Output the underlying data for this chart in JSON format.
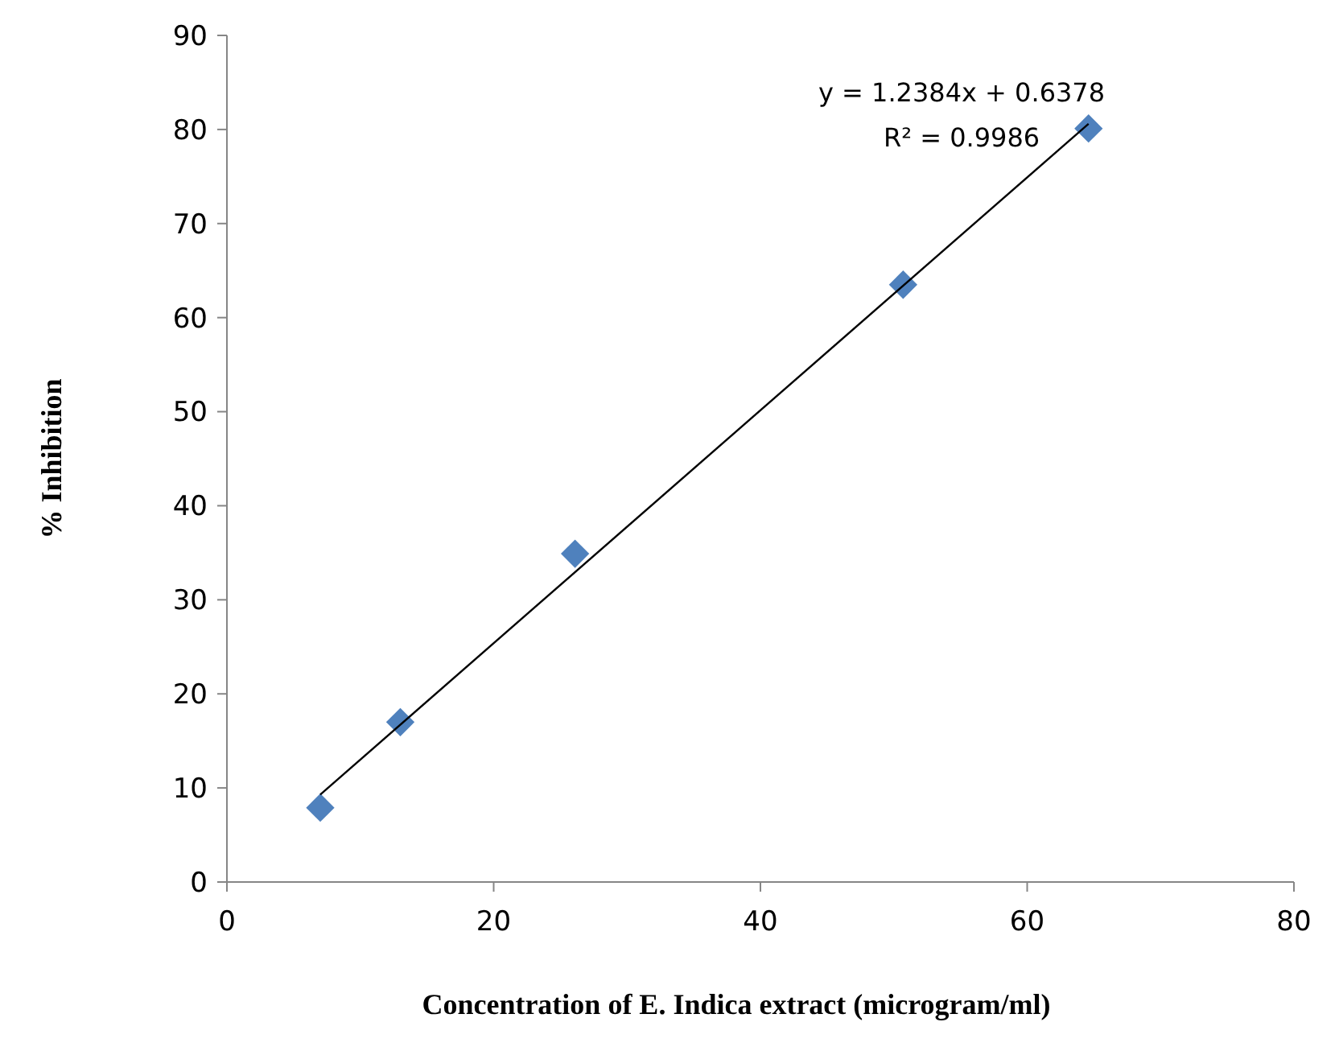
{
  "chart_data": {
    "type": "scatter",
    "xlabel": "Concentration of E. Indica extract (microgram/ml)",
    "ylabel": "% Inhibition",
    "annotations": [
      "y = 1.2384x + 0.6378",
      "R² = 0.9986"
    ],
    "xlim": [
      0,
      80
    ],
    "xticks": [
      0,
      20,
      40,
      60,
      80
    ],
    "ylim": [
      0,
      90
    ],
    "yticks": [
      0,
      10,
      20,
      30,
      40,
      50,
      60,
      70,
      80,
      90
    ],
    "grid": false,
    "marker": "diamond",
    "series": [
      {
        "color": "#4f81bd",
        "x": [
          7.0,
          13.0,
          26.1,
          50.7,
          64.6
        ],
        "values": [
          7.9,
          17.0,
          34.9,
          63.5,
          80.1
        ]
      },
      {
        "type": "line",
        "color": "#000000",
        "x": [
          7.0,
          64.6
        ],
        "values": [
          9.3,
          80.6
        ],
        "marker": "none",
        "line_style": "solid"
      }
    ]
  }
}
